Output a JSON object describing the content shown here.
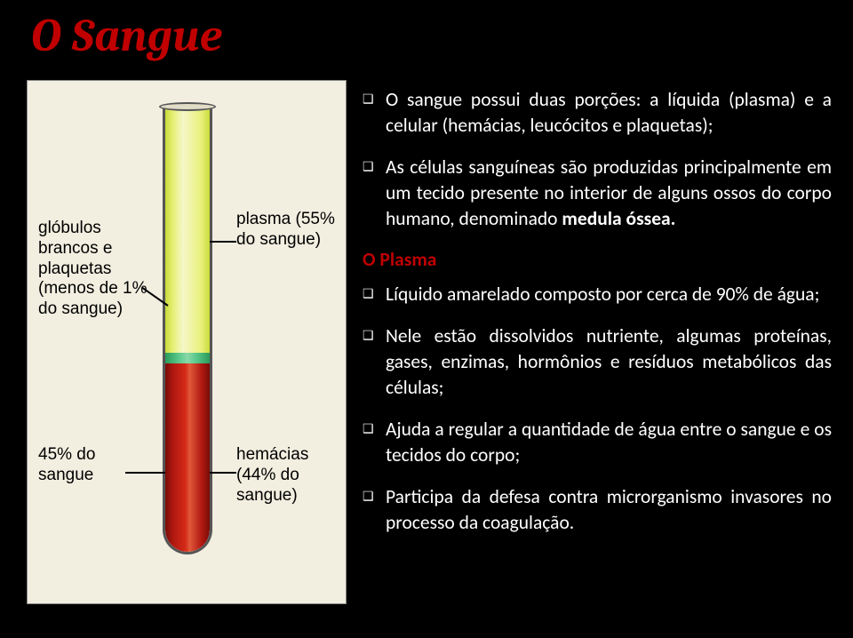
{
  "title": "O Sangue",
  "diagram": {
    "background_color": "#f2eee0",
    "tube_border_color": "#555555",
    "plasma_color": "#e8f078",
    "buffy_color": "#5ac88a",
    "rbc_color": "#b01810",
    "labels": {
      "globulos": "glóbulos brancos e plaquetas (menos de 1% do sangue)",
      "plasma": "plasma (55% do sangue)",
      "percent45": "45% do sangue",
      "hemacias": "hemácias (44% do sangue)"
    },
    "label_fontsize": 19,
    "label_color": "#000000"
  },
  "content": {
    "bullet_glyph": "❑",
    "text_color": "#ffffff",
    "accent_color": "#c00000",
    "fontsize": 21.5,
    "bullets_top": [
      "O sangue possui duas porções: a líquida (plasma) e a celular (hemácias, leucócitos e plaquetas);",
      "As células sanguíneas são produzidas principalmente em um tecido presente no interior de alguns ossos do corpo humano, denominado "
    ],
    "bold_span": "medula óssea.",
    "section_header": "O Plasma",
    "bullets_bottom": [
      "Líquido amarelado composto por cerca de 90% de água;",
      "Nele estão dissolvidos nutriente, algumas proteínas, gases, enzimas, hormônios e resíduos metabólicos das células;",
      "Ajuda a regular a quantidade de água entre o sangue e os tecidos do corpo;",
      "Participa da defesa contra microrganismo invasores no processo da coagulação."
    ]
  },
  "colors": {
    "background": "#000000",
    "title_color": "#c00000"
  },
  "typography": {
    "title_font": "Cambria",
    "title_fontsize": 52,
    "title_style": "italic bold",
    "body_font": "Calibri"
  }
}
